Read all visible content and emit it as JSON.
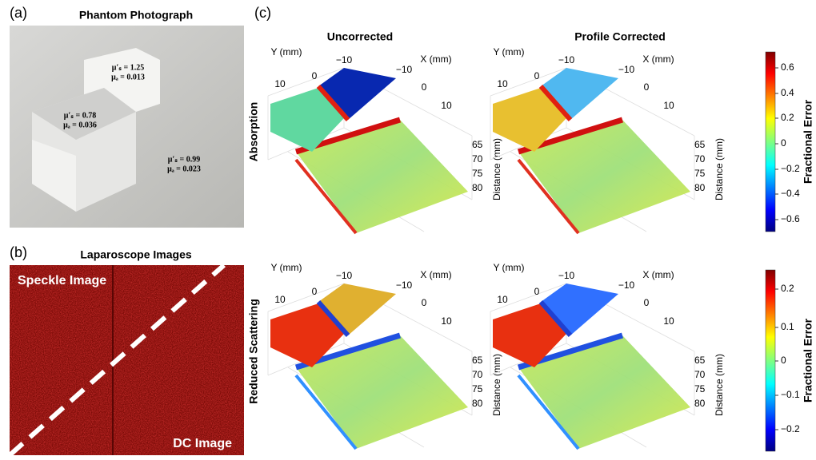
{
  "panel_a": {
    "label": "(a)",
    "title": "Phantom Photograph",
    "blocks": [
      {
        "mus": "μ′ₛ = 1.25",
        "mua": "μₐ = 0.013"
      },
      {
        "mus": "μ′ₛ = 0.78",
        "mua": "μₐ = 0.036"
      },
      {
        "mus": "μ′ₛ = 0.99",
        "mua": "μₐ = 0.023"
      }
    ]
  },
  "panel_b": {
    "label": "(b)",
    "title": "Laparoscope Images",
    "speckle": "Speckle Image",
    "dc": "DC Image"
  },
  "panel_c": {
    "label": "(c)",
    "columns": [
      "Uncorrected",
      "Profile Corrected"
    ],
    "rows": [
      "Absorption",
      "Reduced Scattering"
    ],
    "plots": [
      {
        "y_label": "Y (mm)",
        "y_ticks": [
          "10",
          "0",
          "−10"
        ],
        "x_label": "X (mm)",
        "x_ticks": [
          "−10",
          "0",
          "10"
        ],
        "z_label": "Distance (mm)",
        "z_ticks": [
          "65",
          "70",
          "75",
          "80"
        ]
      },
      {
        "y_label": "Y (mm)",
        "y_ticks": [
          "10",
          "0",
          "−10"
        ],
        "x_label": "X (mm)",
        "x_ticks": [
          "−10",
          "0",
          "10"
        ],
        "z_label": "Distance (mm)",
        "z_ticks": [
          "65",
          "70",
          "75",
          "80"
        ]
      },
      {
        "y_label": "Y (mm)",
        "y_ticks": [
          "10",
          "0",
          "−10"
        ],
        "x_label": "X (mm)",
        "x_ticks": [
          "−10",
          "0",
          "10"
        ],
        "z_label": "Distance (mm)",
        "z_ticks": [
          "65",
          "70",
          "75",
          "80"
        ]
      },
      {
        "y_label": "Y (mm)",
        "y_ticks": [
          "10",
          "0",
          "−10"
        ],
        "x_label": "X (mm)",
        "x_ticks": [
          "−10",
          "0",
          "10"
        ],
        "z_label": "Distance (mm)",
        "z_ticks": [
          "65",
          "70",
          "75",
          "80"
        ]
      }
    ],
    "colorbars": [
      {
        "label": "Fractional Error",
        "ticks": [
          "0.6",
          "0.4",
          "0.2",
          "0",
          "−0.2",
          "−0.4",
          "−0.6"
        ]
      },
      {
        "label": "Fractional Error",
        "ticks": [
          "0.2",
          "0.1",
          "0",
          "−0.1",
          "−0.2"
        ]
      }
    ]
  }
}
